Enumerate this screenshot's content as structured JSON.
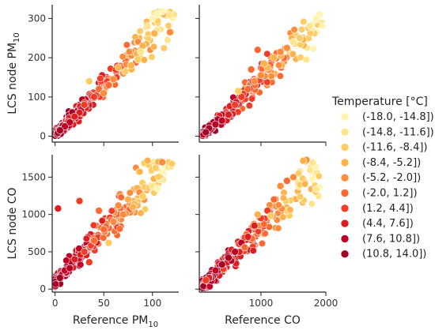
{
  "chart_data": {
    "type": "scatter",
    "layout": "2x2 grid with shared axes",
    "legend": {
      "title": "Temperature [°C]",
      "placement": "right",
      "bins": [
        {
          "label": "(-18.0, -14.8])",
          "color": "#fff4b0"
        },
        {
          "label": "(-14.8, -11.6])",
          "color": "#fee48a"
        },
        {
          "label": "(-11.6, -8.4])",
          "color": "#fecc61"
        },
        {
          "label": "(-8.4, -5.2])",
          "color": "#feb24c"
        },
        {
          "label": "(-5.2, -2.0])",
          "color": "#fd8d3c"
        },
        {
          "label": "(-2.0, 1.2])",
          "color": "#fc6a32"
        },
        {
          "label": "(1.2, 4.4])",
          "color": "#f23c26"
        },
        {
          "label": "(4.4, 7.6])",
          "color": "#dc1d22"
        },
        {
          "label": "(7.6, 10.8])",
          "color": "#bd0026"
        },
        {
          "label": "(10.8, 14.0])",
          "color": "#a50026"
        }
      ]
    },
    "x_axes": [
      {
        "label": "Reference PM",
        "label_sub": "10",
        "lim": [
          -3,
          127
        ],
        "ticks": [
          0,
          50,
          100
        ]
      },
      {
        "label": "Reference CO",
        "label_sub": "",
        "lim": [
          50,
          2000
        ],
        "ticks": [
          1000,
          2000
        ]
      }
    ],
    "y_axes": [
      {
        "label": "LCS node PM",
        "label_sub": "10",
        "lim": [
          -15,
          335
        ],
        "ticks": [
          0,
          100,
          200,
          300
        ]
      },
      {
        "label": "LCS node CO",
        "label_sub": "",
        "lim": [
          -40,
          1800
        ],
        "ticks": [
          0,
          500,
          1000,
          1500
        ]
      }
    ],
    "panels": [
      {
        "row": 0,
        "col": 0,
        "x_range": [
          0,
          125
        ],
        "y_range": [
          0,
          320
        ],
        "trend": {
          "slope": 2.5,
          "intercept": 5
        },
        "points": [
          [
            100,
            300
          ],
          [
            105,
            310
          ],
          [
            110,
            318
          ],
          [
            118,
            265
          ],
          [
            95,
            280
          ],
          [
            85,
            195
          ],
          [
            90,
            230
          ],
          [
            78,
            180
          ],
          [
            70,
            160
          ],
          [
            60,
            145
          ],
          [
            55,
            130
          ],
          [
            45,
            120
          ],
          [
            40,
            100
          ],
          [
            30,
            80
          ],
          [
            25,
            60
          ],
          [
            20,
            50
          ],
          [
            15,
            35
          ],
          [
            10,
            25
          ],
          [
            5,
            15
          ],
          [
            35,
            140
          ],
          [
            50,
            110
          ],
          [
            65,
            175
          ],
          [
            102,
            262
          ],
          [
            88,
            215
          ],
          [
            72,
            165
          ]
        ],
        "bin_index": [
          0,
          0,
          0,
          4,
          1,
          2,
          3,
          3,
          4,
          4,
          5,
          5,
          6,
          6,
          7,
          7,
          8,
          8,
          9,
          2,
          4,
          3,
          3,
          1,
          2
        ]
      },
      {
        "row": 0,
        "col": 1,
        "x_range": [
          100,
          1950
        ],
        "y_range": [
          0,
          310
        ],
        "trend": {
          "slope": 0.16,
          "intercept": -15
        },
        "points": [
          [
            1900,
            310
          ],
          [
            1850,
            300
          ],
          [
            1750,
            280
          ],
          [
            1600,
            250
          ],
          [
            1400,
            225
          ],
          [
            1200,
            200
          ],
          [
            1100,
            175
          ],
          [
            1000,
            155
          ],
          [
            950,
            220
          ],
          [
            900,
            140
          ],
          [
            800,
            120
          ],
          [
            700,
            100
          ],
          [
            600,
            80
          ],
          [
            500,
            55
          ],
          [
            400,
            40
          ],
          [
            300,
            30
          ],
          [
            200,
            20
          ],
          [
            150,
            10
          ],
          [
            1300,
            215
          ],
          [
            1050,
            185
          ],
          [
            850,
            170
          ],
          [
            650,
            115
          ],
          [
            1500,
            240
          ]
        ],
        "bin_index": [
          0,
          0,
          1,
          2,
          4,
          3,
          3,
          4,
          5,
          4,
          5,
          6,
          6,
          7,
          8,
          8,
          9,
          9,
          4,
          3,
          5,
          2,
          1
        ]
      },
      {
        "row": 1,
        "col": 0,
        "x_range": [
          0,
          120
        ],
        "y_range": [
          0,
          1720
        ],
        "trend": {
          "slope": 14,
          "intercept": 100
        },
        "points": [
          [
            95,
            1720
          ],
          [
            110,
            1700
          ],
          [
            120,
            1680
          ],
          [
            100,
            1380
          ],
          [
            105,
            1350
          ],
          [
            90,
            1240
          ],
          [
            80,
            1100
          ],
          [
            70,
            1000
          ],
          [
            60,
            900
          ],
          [
            50,
            800
          ],
          [
            40,
            650
          ],
          [
            30,
            500
          ],
          [
            20,
            400
          ],
          [
            10,
            250
          ],
          [
            5,
            150
          ],
          [
            3,
            1080
          ],
          [
            25,
            1180
          ],
          [
            45,
            1050
          ],
          [
            75,
            1200
          ],
          [
            65,
            1120
          ],
          [
            55,
            620
          ],
          [
            35,
            360
          ],
          [
            15,
            280
          ]
        ],
        "bin_index": [
          3,
          4,
          2,
          1,
          0,
          2,
          3,
          4,
          4,
          5,
          5,
          6,
          7,
          8,
          9,
          7,
          6,
          5,
          3,
          4,
          2,
          6,
          8
        ]
      },
      {
        "row": 1,
        "col": 1,
        "x_range": [
          100,
          1900
        ],
        "y_range": [
          0,
          1750
        ],
        "trend": {
          "slope": 0.85,
          "intercept": -50
        },
        "points": [
          [
            1900,
            1360
          ],
          [
            1850,
            1340
          ],
          [
            1700,
            1730
          ],
          [
            1650,
            1720
          ],
          [
            1500,
            1500
          ],
          [
            1400,
            1450
          ],
          [
            1200,
            1200
          ],
          [
            1100,
            1050
          ],
          [
            1000,
            950
          ],
          [
            900,
            850
          ],
          [
            800,
            700
          ],
          [
            700,
            620
          ],
          [
            600,
            500
          ],
          [
            500,
            420
          ],
          [
            400,
            330
          ],
          [
            300,
            250
          ],
          [
            200,
            150
          ],
          [
            150,
            120
          ],
          [
            1300,
            1380
          ],
          [
            1150,
            980
          ],
          [
            950,
            1000
          ],
          [
            750,
            560
          ]
        ],
        "bin_index": [
          0,
          1,
          4,
          3,
          4,
          5,
          5,
          6,
          6,
          7,
          7,
          8,
          8,
          9,
          9,
          8,
          7,
          6,
          4,
          2,
          3,
          5
        ]
      }
    ]
  }
}
